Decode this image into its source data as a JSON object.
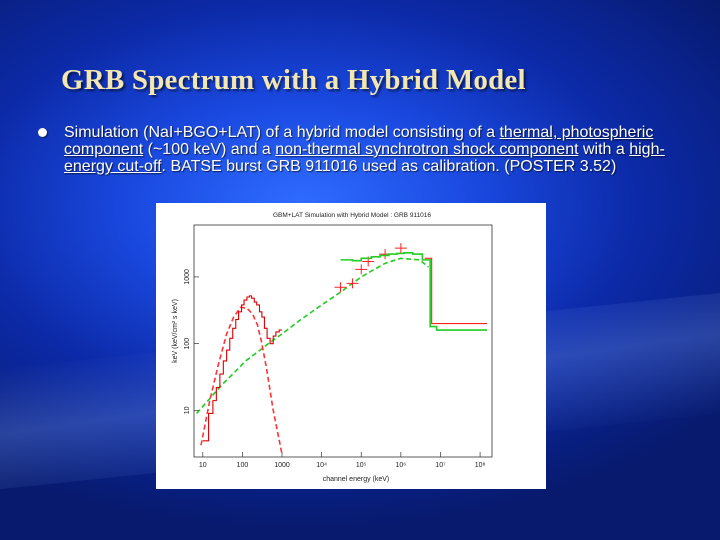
{
  "slide": {
    "title": "GRB Spectrum with a Hybrid Model",
    "bullet": {
      "t1": "Simulation (NaI+BGO+LAT) of a hybrid model consisting of a ",
      "u1": "thermal, photospheric component",
      "t2": " (~100 keV) and a ",
      "u2": "non-thermal synchrotron shock component",
      "t3": " with a ",
      "u3": "high-energy cut-off",
      "t4": ". BATSE burst GRB 911016 used as calibration. (POSTER 3.52)"
    }
  },
  "chart_data": {
    "type": "line",
    "title": "GBM+LAT Simulation with Hybrid Model : GRB 911016",
    "xlabel": "channel energy (keV)",
    "ylabel": "keV (keV/cm² s keV)",
    "xscale": "log",
    "yscale": "log",
    "xlim": [
      6,
      200000000
    ],
    "ylim": [
      2,
      6000
    ],
    "xticks": [
      {
        "value": 10,
        "label": "10"
      },
      {
        "value": 100,
        "label": "100"
      },
      {
        "value": 1000,
        "label": "1000"
      },
      {
        "value": 10000,
        "label": "10⁴"
      },
      {
        "value": 100000,
        "label": "10⁵"
      },
      {
        "value": 1000000,
        "label": "10⁶"
      },
      {
        "value": 10000000,
        "label": "10⁷"
      },
      {
        "value": 100000000,
        "label": "10⁸"
      }
    ],
    "yticks": [
      {
        "value": 10,
        "label": "10"
      },
      {
        "value": 100,
        "label": "100"
      },
      {
        "value": 1000,
        "label": "1000"
      }
    ],
    "series": [
      {
        "kind": "model",
        "color": "#22cc22",
        "style": "dashed",
        "x": [
          7,
          15,
          30,
          60,
          120,
          250,
          500,
          1000,
          3000,
          10000,
          30000,
          100000,
          400000,
          1000000,
          3000000,
          5000000
        ],
        "y": [
          9,
          15,
          24,
          36,
          55,
          76,
          105,
          140,
          230,
          380,
          590,
          1000,
          1600,
          1900,
          1800,
          1400
        ]
      },
      {
        "kind": "model",
        "color": "#ff3333",
        "style": "dashed",
        "x": [
          9,
          15,
          25,
          40,
          60,
          90,
          130,
          180,
          240,
          300,
          400,
          600,
          1000
        ],
        "y": [
          3,
          14,
          50,
          140,
          250,
          350,
          340,
          280,
          190,
          110,
          45,
          10,
          2.2
        ]
      },
      {
        "kind": "data",
        "color": "#dd0000",
        "style": "steps",
        "x": [
          10,
          14,
          18,
          22,
          27,
          33,
          40,
          48,
          57,
          68,
          80,
          95,
          110,
          130,
          150,
          170,
          200,
          230,
          270,
          310,
          360,
          420,
          500,
          600,
          700,
          850,
          1000
        ],
        "y": [
          3.5,
          9,
          14,
          22,
          35,
          55,
          80,
          120,
          170,
          230,
          300,
          380,
          450,
          500,
          520,
          480,
          420,
          380,
          300,
          250,
          170,
          120,
          100,
          130,
          150,
          160,
          170
        ]
      },
      {
        "kind": "data",
        "color": "#ff2222",
        "style": "points",
        "x": [
          30000,
          60000,
          100000,
          150000,
          400000,
          1000000
        ],
        "y": [
          700,
          800,
          1300,
          1700,
          2200,
          2700
        ]
      },
      {
        "kind": "model",
        "color": "#22cc22",
        "style": "steps",
        "x": [
          30000,
          60000,
          100000,
          180000,
          300000,
          500000,
          800000,
          1200000,
          2000000,
          3500000,
          5500000,
          8000000,
          150000000
        ],
        "y": [
          1800,
          1750,
          1900,
          2000,
          2100,
          2200,
          2250,
          2300,
          2200,
          1800,
          180,
          160,
          160
        ]
      },
      {
        "kind": "data",
        "color": "#ff2222",
        "style": "steps",
        "x": [
          4000000,
          6000000,
          150000000
        ],
        "y": [
          1900,
          200,
          200
        ]
      }
    ],
    "grid": false,
    "legend": "none"
  }
}
